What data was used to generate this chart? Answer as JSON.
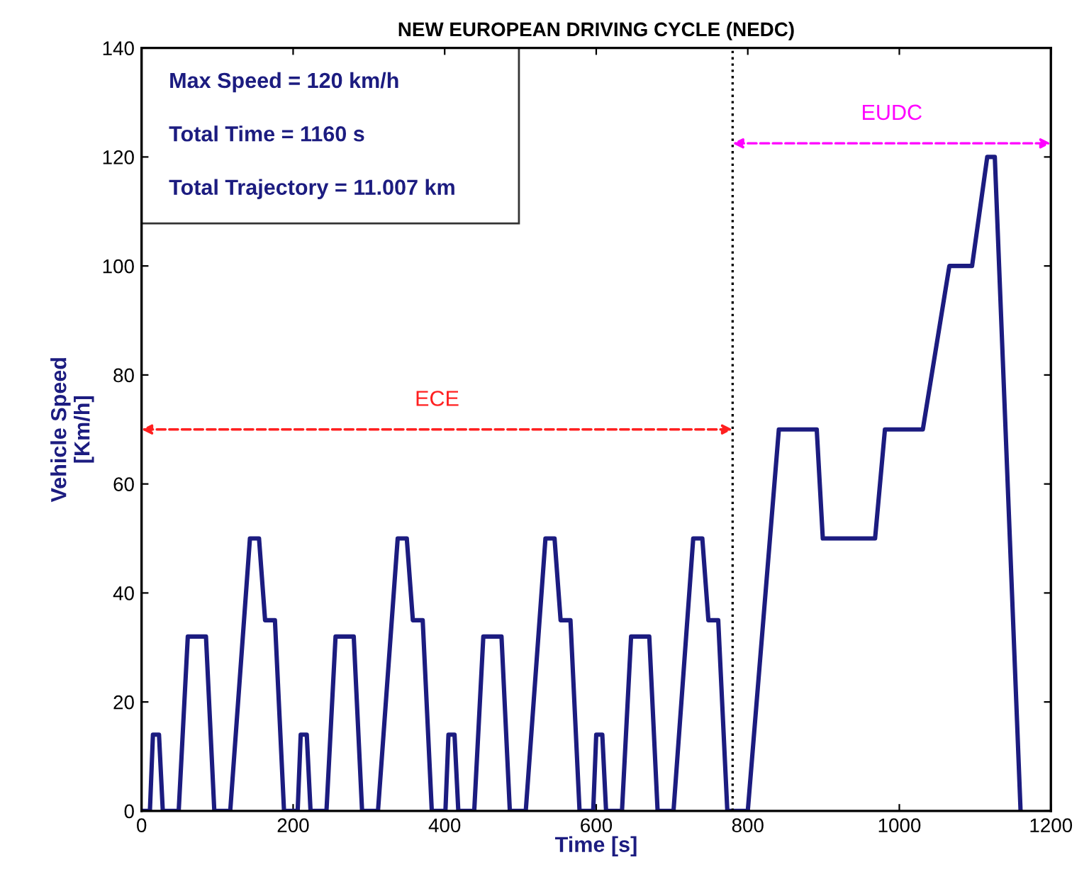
{
  "chart_data": {
    "type": "line",
    "title": "NEW EUROPEAN DRIVING CYCLE (NEDC)",
    "xlabel": "Time [s]",
    "ylabel": "Vehicle Speed\n[Km/h]",
    "annotations": [
      "Max Speed = 120 km/h",
      "Total Time = 1160 s",
      "Total Trajectory = 11.007 km",
      "ECE",
      "EUDC"
    ],
    "series": [
      {
        "color": "#1c1c80",
        "x": [
          0,
          11,
          15,
          23,
          28,
          49,
          61,
          85,
          96,
          117,
          143,
          155,
          163,
          176,
          188,
          195,
          206,
          210,
          218,
          223,
          244,
          256,
          280,
          291,
          312,
          338,
          350,
          358,
          371,
          383,
          390,
          401,
          405,
          413,
          418,
          439,
          451,
          475,
          486,
          507,
          533,
          545,
          553,
          566,
          578,
          585,
          596,
          600,
          608,
          613,
          634,
          646,
          670,
          681,
          702,
          728,
          740,
          748,
          761,
          773,
          800,
          841,
          891,
          899,
          968,
          981,
          1031,
          1066,
          1096,
          1116,
          1126,
          1160
        ],
        "values": [
          0,
          0,
          14,
          14,
          0,
          0,
          32,
          32,
          0,
          0,
          50,
          50,
          35,
          35,
          0,
          0,
          0,
          14,
          14,
          0,
          0,
          32,
          32,
          0,
          0,
          50,
          50,
          35,
          35,
          0,
          0,
          0,
          14,
          14,
          0,
          0,
          32,
          32,
          0,
          0,
          50,
          50,
          35,
          35,
          0,
          0,
          0,
          14,
          14,
          0,
          0,
          32,
          32,
          0,
          0,
          50,
          50,
          35,
          35,
          0,
          0,
          70,
          70,
          50,
          50,
          70,
          70,
          100,
          100,
          120,
          120,
          0
        ]
      }
    ],
    "xlim": [
      0,
      1200
    ],
    "ylim": [
      0,
      140
    ],
    "xticks": [
      0,
      200,
      400,
      600,
      800,
      1000,
      1200
    ],
    "yticks": [
      0,
      20,
      40,
      60,
      80,
      100,
      120,
      140
    ],
    "grid": false,
    "line_style": "solid",
    "ref_lines": [
      {
        "axis": "x",
        "value": 780,
        "color": "#000000",
        "line_style": "dotted"
      }
    ]
  }
}
